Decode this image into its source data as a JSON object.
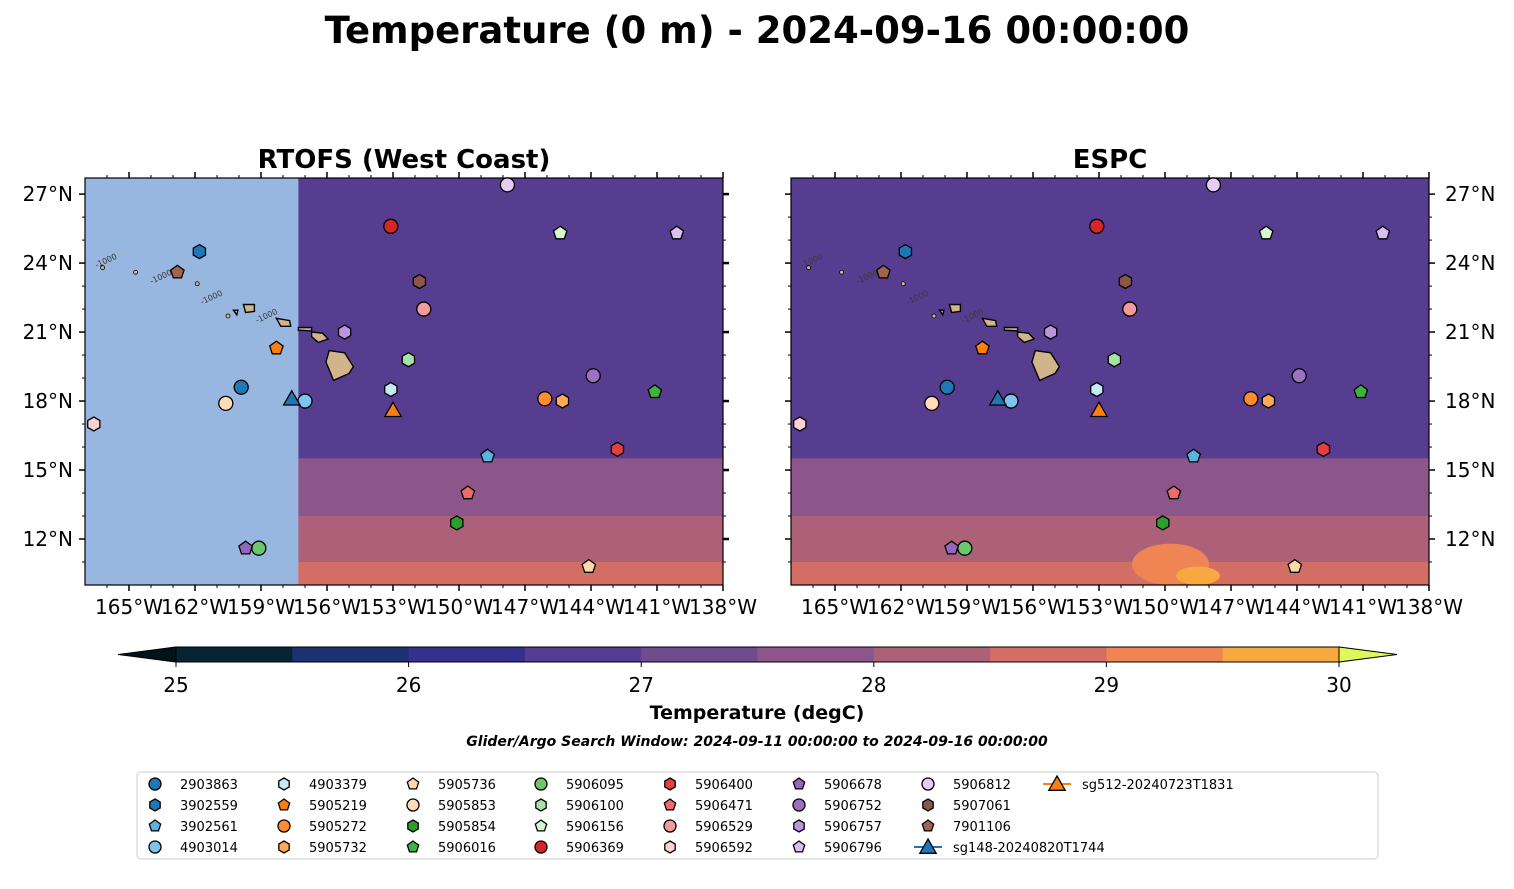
{
  "figure": {
    "suptitle": "Temperature (0 m) - 2024-09-16 00:00:00",
    "panels": [
      {
        "title": "RTOFS (West Coast)",
        "land_mask_color": "#97b6e0",
        "model_cutoff_lon": -157.3,
        "islands_outline_color": "#d2b48c"
      },
      {
        "title": "ESPC",
        "islands_outline_color": "#d2b48c"
      }
    ],
    "colorbar_label": "Temperature (degC)",
    "search_window": "Glider/Argo Search Window: 2024-09-11 00:00:00 to 2024-09-16 00:00:00",
    "contour_labels": [
      "-1000",
      "-1000",
      "-1000",
      "-1000"
    ]
  },
  "chart_data": {
    "type": "heatmap",
    "extent": {
      "lon": [
        -167.0,
        -138.0
      ],
      "lat": [
        10.0,
        27.7
      ]
    },
    "x_ticks": [
      -165,
      -162,
      -159,
      -156,
      -153,
      -150,
      -147,
      -144,
      -141,
      -138
    ],
    "x_tick_labels": [
      "165°W",
      "162°W",
      "159°W",
      "156°W",
      "153°W",
      "150°W",
      "147°W",
      "144°W",
      "141°W",
      "138°W"
    ],
    "y_ticks": [
      12,
      15,
      18,
      21,
      24,
      27
    ],
    "y_tick_labels": [
      "12°N",
      "15°N",
      "18°N",
      "21°N",
      "24°N",
      "27°N"
    ],
    "colorbar": {
      "levels": [
        25.0,
        25.5,
        26.0,
        26.5,
        27.0,
        27.5,
        28.0,
        28.5,
        29.0,
        29.5,
        30.0
      ],
      "colors": [
        "#082434",
        "#1c3170",
        "#35308d",
        "#573d8f",
        "#6f4c8d",
        "#8c568a",
        "#ad6178",
        "#d36e64",
        "#ee8552",
        "#f8a840",
        "#f8cd45"
      ],
      "under_color": "#03131a",
      "over_color": "#e0f75c",
      "tick_values": [
        25,
        26,
        27,
        28,
        29,
        30
      ],
      "tick_labels": [
        "25",
        "26",
        "27",
        "28",
        "29",
        "30"
      ]
    },
    "temperature_field_regions": [
      {
        "temp": 25.2,
        "lon": [
          -146.5,
          -138.0
        ],
        "lat": [
          21.5,
          27.7
        ]
      },
      {
        "temp": 25.7,
        "lon": [
          -150.0,
          -138.0
        ],
        "lat": [
          19.5,
          27.7
        ]
      },
      {
        "temp": 26.2,
        "lon": [
          -155.0,
          -138.0
        ],
        "lat": [
          17.5,
          27.7
        ]
      },
      {
        "temp": 26.8,
        "lon": [
          -167.0,
          -138.0
        ],
        "lat": [
          15.5,
          27.7
        ]
      },
      {
        "temp": 27.7,
        "lon": [
          -167.0,
          -138.0
        ],
        "lat": [
          13.0,
          15.5
        ]
      },
      {
        "temp": 28.3,
        "lon": [
          -167.0,
          -138.0
        ],
        "lat": [
          11.0,
          13.0
        ]
      },
      {
        "temp": 28.8,
        "lon": [
          -167.0,
          -138.0
        ],
        "lat": [
          10.0,
          11.0
        ]
      }
    ],
    "series": [
      {
        "name": "2903863",
        "marker": "circle",
        "color": "#1f77b4",
        "lon": -159.9,
        "lat": 18.6
      },
      {
        "name": "3902559",
        "marker": "hexagon",
        "color": "#1f77b4",
        "lon": -161.8,
        "lat": 24.5
      },
      {
        "name": "3902561",
        "marker": "pentagon",
        "color": "#5ab4e0",
        "lon": -148.7,
        "lat": 15.6
      },
      {
        "name": "4903014",
        "marker": "circle",
        "color": "#7fc4ec",
        "lon": -157.0,
        "lat": 18.0
      },
      {
        "name": "4903379",
        "marker": "hexagon",
        "color": "#c7e9f7",
        "lon": -153.1,
        "lat": 18.5
      },
      {
        "name": "5905219",
        "marker": "pentagon",
        "color": "#ff7f0e",
        "lon": -158.3,
        "lat": 20.3
      },
      {
        "name": "5905272",
        "marker": "circle",
        "color": "#ff8c2e",
        "lon": -146.1,
        "lat": 18.1
      },
      {
        "name": "5905732",
        "marker": "hexagon",
        "color": "#ffaa55",
        "lon": -145.3,
        "lat": 18.0
      },
      {
        "name": "5905736",
        "marker": "pentagon",
        "color": "#ffd9a8",
        "lon": -144.1,
        "lat": 10.8
      },
      {
        "name": "5905853",
        "marker": "circle",
        "color": "#ffddb8",
        "lon": -160.6,
        "lat": 17.9
      },
      {
        "name": "5905854",
        "marker": "hexagon",
        "color": "#2ca02c",
        "lon": -150.1,
        "lat": 12.7
      },
      {
        "name": "5906016",
        "marker": "pentagon",
        "color": "#3cb33c",
        "lon": -141.1,
        "lat": 18.4
      },
      {
        "name": "5906095",
        "marker": "circle",
        "color": "#6cc66c",
        "lon": -159.1,
        "lat": 11.6
      },
      {
        "name": "5906100",
        "marker": "hexagon",
        "color": "#a6e3a6",
        "lon": -152.3,
        "lat": 19.8
      },
      {
        "name": "5906156",
        "marker": "pentagon",
        "color": "#d4f7d0",
        "lon": -145.4,
        "lat": 25.3
      },
      {
        "name": "5906369",
        "marker": "circle",
        "color": "#d62728",
        "lon": -153.1,
        "lat": 25.6
      },
      {
        "name": "5906400",
        "marker": "hexagon",
        "color": "#e04040",
        "lon": -142.8,
        "lat": 15.9
      },
      {
        "name": "5906471",
        "marker": "pentagon",
        "color": "#ef6a6a",
        "lon": -149.6,
        "lat": 14.0
      },
      {
        "name": "5906529",
        "marker": "circle",
        "color": "#f39a9a",
        "lon": -151.6,
        "lat": 22.0
      },
      {
        "name": "5906592",
        "marker": "hexagon",
        "color": "#fbd2d2",
        "lon": -166.6,
        "lat": 17.0
      },
      {
        "name": "5906678",
        "marker": "pentagon",
        "color": "#9467bd",
        "lon": -159.7,
        "lat": 11.6
      },
      {
        "name": "5906752",
        "marker": "circle",
        "color": "#9a72c4",
        "lon": -143.9,
        "lat": 19.1
      },
      {
        "name": "5906757",
        "marker": "hexagon",
        "color": "#b897dc",
        "lon": -155.2,
        "lat": 21.0
      },
      {
        "name": "5906796",
        "marker": "pentagon",
        "color": "#d9bff0",
        "lon": -140.1,
        "lat": 25.3
      },
      {
        "name": "5906812",
        "marker": "circle",
        "color": "#e6cdf5",
        "lon": -147.8,
        "lat": 27.4
      },
      {
        "name": "5907061",
        "marker": "hexagon",
        "color": "#8c564b",
        "lon": -151.8,
        "lat": 23.2
      },
      {
        "name": "7901106",
        "marker": "pentagon",
        "color": "#a0644f",
        "lon": -162.8,
        "lat": 23.6
      },
      {
        "name": "sg148-20240820T1744",
        "marker": "triangle",
        "color": "#1f77b4",
        "lon": -157.6,
        "lat": 18.1
      },
      {
        "name": "sg512-20240723T1831",
        "marker": "triangle",
        "color": "#ff7f0e",
        "lon": -153.0,
        "lat": 17.6
      }
    ]
  }
}
